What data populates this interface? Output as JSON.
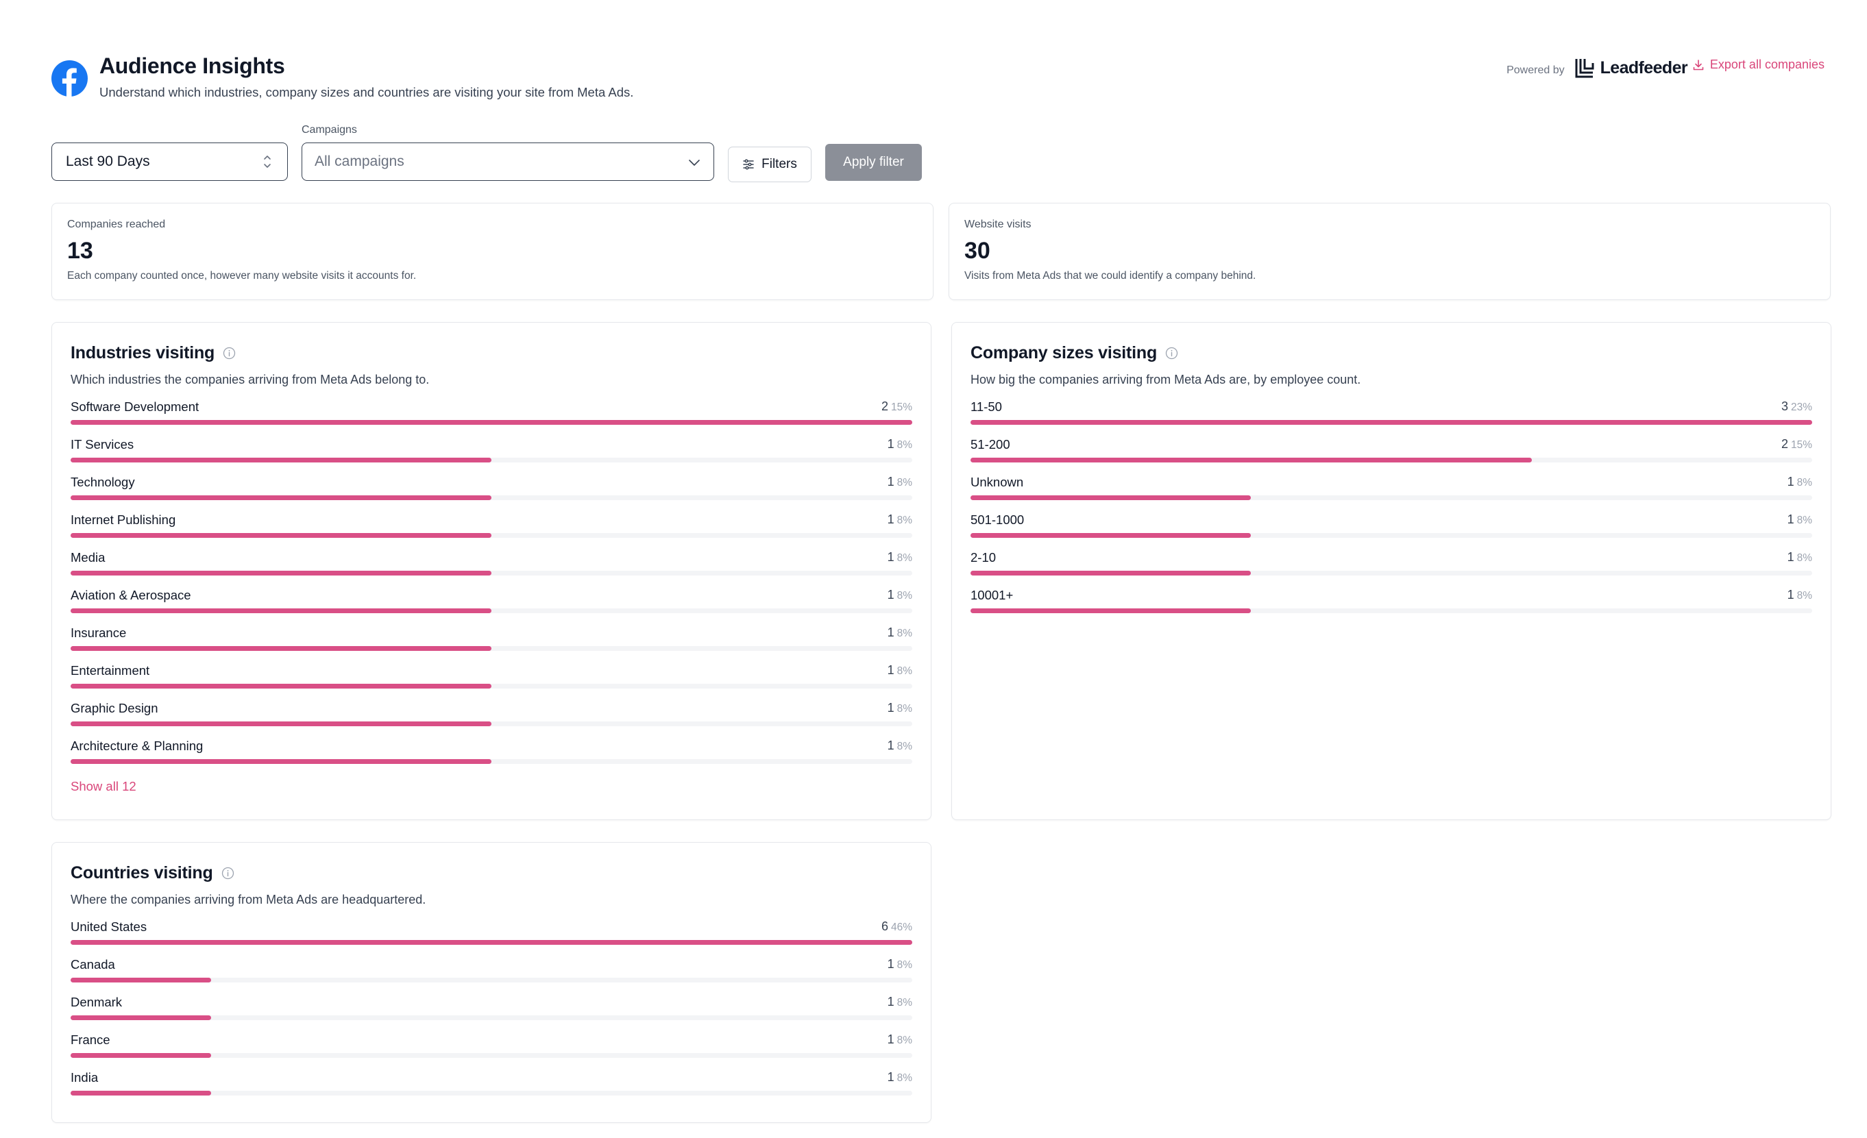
{
  "header": {
    "title": "Audience Insights",
    "subtitle": "Understand which industries, company sizes and countries are visiting your site from Meta Ads.",
    "powered_by": "Powered by",
    "brand": "Leadfeeder",
    "export_label": "Export all companies"
  },
  "filters": {
    "date_range": "Last 90 Days",
    "campaigns_label": "Campaigns",
    "campaigns_placeholder": "All campaigns",
    "filters_button": "Filters",
    "apply_button": "Apply filter"
  },
  "stats": {
    "companies": {
      "label": "Companies reached",
      "value": "13",
      "desc": "Each company counted once, however many website visits it accounts for."
    },
    "visits": {
      "label": "Website visits",
      "value": "30",
      "desc": "Visits from Meta Ads that we could identify a company behind."
    }
  },
  "industries": {
    "title": "Industries visiting",
    "desc": "Which industries the companies arriving from Meta Ads belong to.",
    "max": 2,
    "items": [
      {
        "label": "Software Development",
        "count": "2",
        "pct": "15%",
        "value": 2
      },
      {
        "label": "IT Services",
        "count": "1",
        "pct": "8%",
        "value": 1
      },
      {
        "label": "Technology",
        "count": "1",
        "pct": "8%",
        "value": 1
      },
      {
        "label": "Internet Publishing",
        "count": "1",
        "pct": "8%",
        "value": 1
      },
      {
        "label": "Media",
        "count": "1",
        "pct": "8%",
        "value": 1
      },
      {
        "label": "Aviation & Aerospace",
        "count": "1",
        "pct": "8%",
        "value": 1
      },
      {
        "label": "Insurance",
        "count": "1",
        "pct": "8%",
        "value": 1
      },
      {
        "label": "Entertainment",
        "count": "1",
        "pct": "8%",
        "value": 1
      },
      {
        "label": "Graphic Design",
        "count": "1",
        "pct": "8%",
        "value": 1
      },
      {
        "label": "Architecture & Planning",
        "count": "1",
        "pct": "8%",
        "value": 1
      }
    ],
    "show_all": "Show all 12"
  },
  "sizes": {
    "title": "Company sizes visiting",
    "desc": "How big the companies arriving from Meta Ads are, by employee count.",
    "max": 3,
    "items": [
      {
        "label": "11-50",
        "count": "3",
        "pct": "23%",
        "value": 3
      },
      {
        "label": "51-200",
        "count": "2",
        "pct": "15%",
        "value": 2
      },
      {
        "label": "Unknown",
        "count": "1",
        "pct": "8%",
        "value": 1
      },
      {
        "label": "501-1000",
        "count": "1",
        "pct": "8%",
        "value": 1
      },
      {
        "label": "2-10",
        "count": "1",
        "pct": "8%",
        "value": 1
      },
      {
        "label": "10001+",
        "count": "1",
        "pct": "8%",
        "value": 1
      }
    ]
  },
  "countries": {
    "title": "Countries visiting",
    "desc": "Where the companies arriving from Meta Ads are headquartered.",
    "max": 6,
    "items": [
      {
        "label": "United States",
        "count": "6",
        "pct": "46%",
        "value": 6
      },
      {
        "label": "Canada",
        "count": "1",
        "pct": "8%",
        "value": 1
      },
      {
        "label": "Denmark",
        "count": "1",
        "pct": "8%",
        "value": 1
      },
      {
        "label": "France",
        "count": "1",
        "pct": "8%",
        "value": 1
      },
      {
        "label": "India",
        "count": "1",
        "pct": "8%",
        "value": 1
      }
    ]
  },
  "colors": {
    "accent": "#d94f86",
    "link": "#d9467a",
    "facebook": "#1877f2",
    "apply_button": "#8b8f98"
  }
}
